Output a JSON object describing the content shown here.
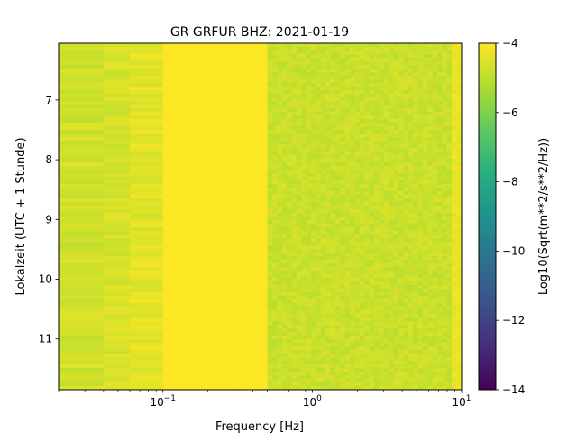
{
  "chart_data": {
    "type": "heatmap",
    "title": "GR GRFUR  BHZ: 2021-01-19",
    "xlabel": "Frequency [Hz]",
    "ylabel": "Lokalzeit (UTC + 1 Stunde)",
    "x_scale": "log",
    "xlim": [
      0.02,
      10
    ],
    "x_ticks": [
      {
        "value": 0.1,
        "base": "10",
        "exp": "−1"
      },
      {
        "value": 1,
        "base": "10",
        "exp": "0"
      },
      {
        "value": 10,
        "base": "10",
        "exp": "1"
      }
    ],
    "ylim": [
      6.05,
      11.85
    ],
    "y_inverted": true,
    "y_ticks": [
      7,
      8,
      9,
      10,
      11
    ],
    "colorbar": {
      "label": "Log10(Sqrt(m**2/s**2/Hz))",
      "range": [
        -14,
        -4
      ],
      "ticks": [
        -4,
        -6,
        -8,
        -10,
        -12,
        -14
      ],
      "tick_labels": [
        "−4",
        "−6",
        "−8",
        "−10",
        "−12",
        "−14"
      ],
      "colormap": "viridis"
    },
    "frequency_bands": [
      {
        "f_range": [
          0.02,
          0.04
        ],
        "value": -4.7,
        "note": "lower frequencies slightly below saturation"
      },
      {
        "f_range": [
          0.04,
          0.06
        ],
        "value": -4.6
      },
      {
        "f_range": [
          0.06,
          0.1
        ],
        "value": -4.4
      },
      {
        "f_range": [
          0.1,
          0.5
        ],
        "value": -4.0
      },
      {
        "f_range": [
          0.5,
          10
        ],
        "value": -4.8
      }
    ]
  }
}
